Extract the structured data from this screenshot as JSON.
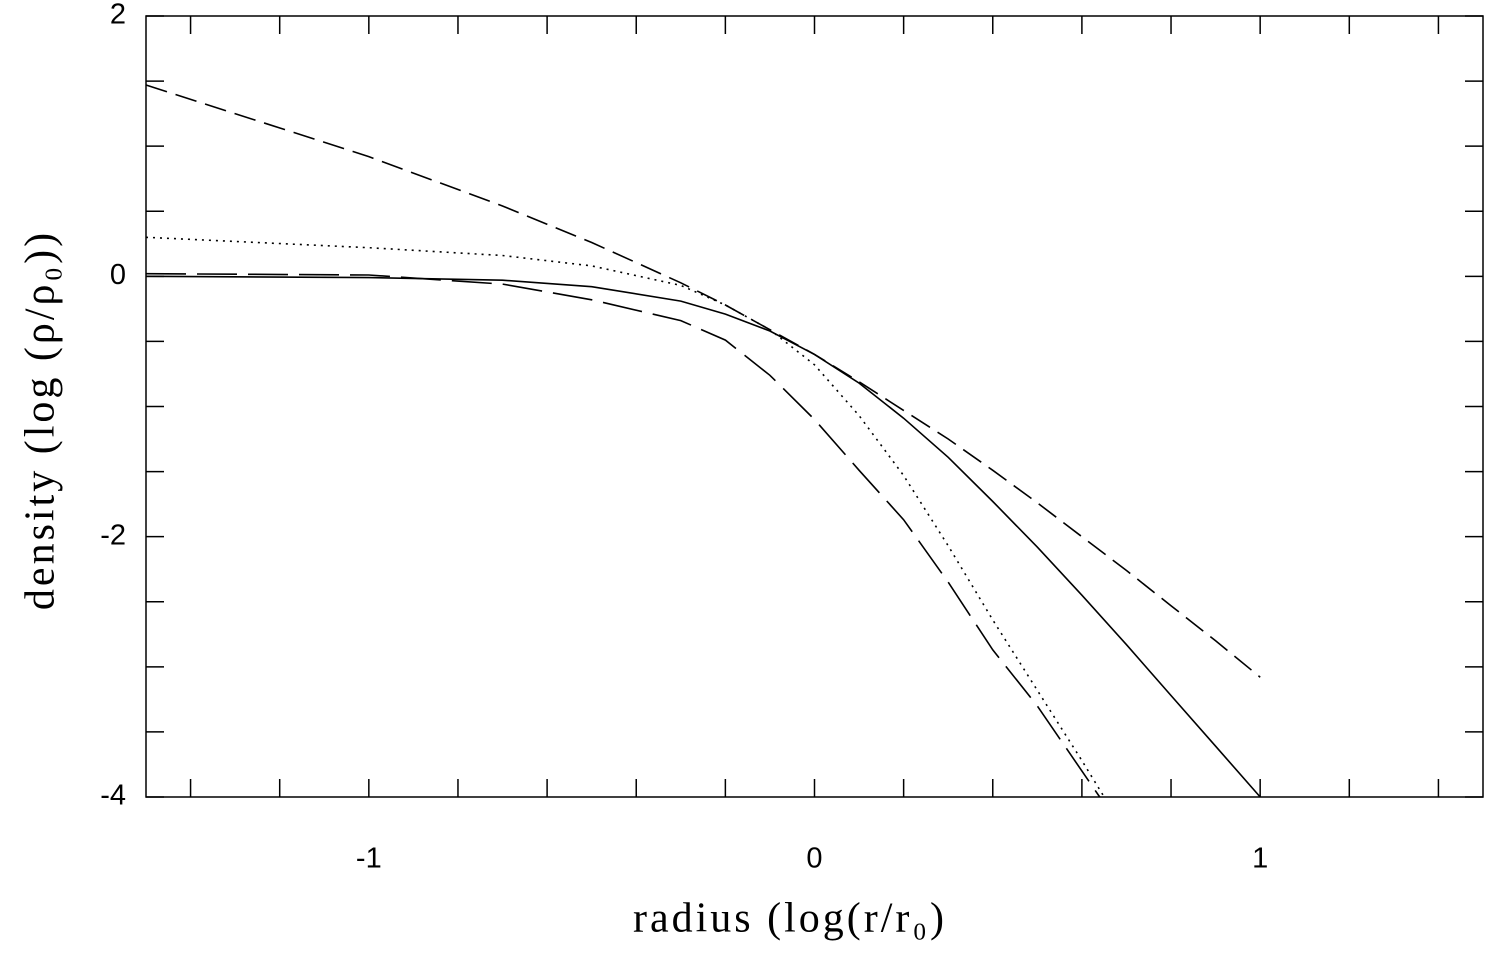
{
  "chart_data": {
    "type": "line",
    "xlabel": "radius (log(r/r₀)",
    "ylabel": "density (log (ρ/ρ₀))",
    "xlim": [
      -1.5,
      1.5
    ],
    "ylim": [
      -4,
      2
    ],
    "xticks": [
      -1,
      0,
      1
    ],
    "yticks": [
      2,
      0,
      -2,
      -4
    ],
    "xminorticks": [
      -1.4,
      -1.2,
      -0.8,
      -0.6,
      -0.4,
      -0.2,
      0.2,
      0.4,
      0.6,
      0.8,
      1.2,
      1.4
    ],
    "yminorticks": [
      1.5,
      1,
      0.5,
      -0.5,
      -1,
      -1.5,
      -2.5,
      -3,
      -3.5
    ],
    "mirror_ticks": true,
    "series": [
      {
        "color": "#000000",
        "dash": "solid",
        "x": [
          -1.5,
          -1,
          -0.7,
          -0.5,
          -0.3,
          -0.2,
          -0.1,
          0,
          0.1,
          0.2,
          0.3,
          0.4,
          0.5,
          0.6,
          0.7,
          0.8,
          0.9,
          1.0
        ],
        "values": [
          0.0,
          -0.01,
          -0.03,
          -0.08,
          -0.19,
          -0.29,
          -0.42,
          -0.6,
          -0.82,
          -1.09,
          -1.39,
          -1.73,
          -2.08,
          -2.45,
          -2.83,
          -3.22,
          -3.61,
          -4.0
        ]
      },
      {
        "color": "#000000",
        "dash": "dashed",
        "x": [
          -1.5,
          -1,
          -0.7,
          -0.5,
          -0.3,
          -0.2,
          -0.1,
          0,
          0.1,
          0.2,
          0.3,
          0.4,
          0.5,
          0.6,
          0.7,
          0.8,
          0.9,
          1.0
        ],
        "values": [
          1.47,
          0.92,
          0.54,
          0.26,
          -0.05,
          -0.22,
          -0.41,
          -0.6,
          -0.81,
          -1.03,
          -1.25,
          -1.49,
          -1.74,
          -2.0,
          -2.26,
          -2.53,
          -2.8,
          -3.08
        ]
      },
      {
        "color": "#000000",
        "dash": "dotted",
        "x": [
          -1.5,
          -1,
          -0.7,
          -0.5,
          -0.3,
          -0.2,
          -0.1,
          0,
          0.1,
          0.2,
          0.3,
          0.4,
          0.5,
          0.6,
          0.65
        ],
        "values": [
          0.3,
          0.22,
          0.16,
          0.08,
          -0.07,
          -0.22,
          -0.41,
          -0.68,
          -1.07,
          -1.53,
          -2.07,
          -2.64,
          -3.18,
          -3.72,
          -4.0
        ]
      },
      {
        "color": "#000000",
        "dash": "longdashed",
        "x": [
          -1.5,
          -1,
          -0.7,
          -0.5,
          -0.3,
          -0.2,
          -0.1,
          0,
          0.1,
          0.2,
          0.3,
          0.4,
          0.5,
          0.64
        ],
        "values": [
          0.02,
          0.01,
          -0.06,
          -0.18,
          -0.34,
          -0.49,
          -0.76,
          -1.1,
          -1.49,
          -1.87,
          -2.35,
          -2.87,
          -3.3,
          -4.0
        ]
      }
    ]
  }
}
